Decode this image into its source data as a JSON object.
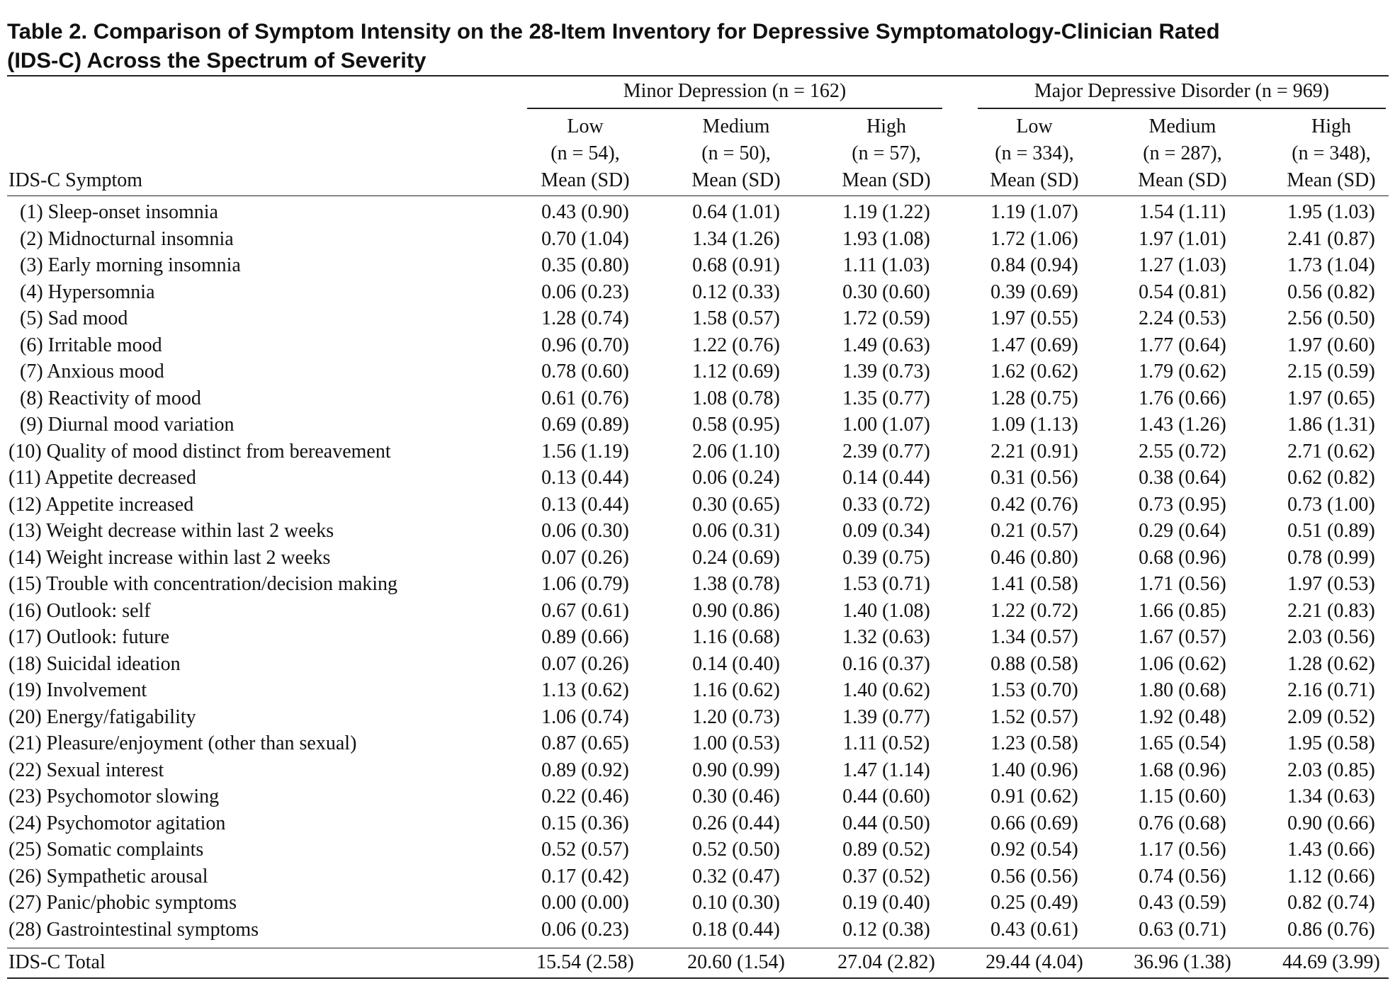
{
  "title_lines": [
    "Table 2. Comparison of Symptom Intensity on the 28-Item Inventory for Depressive Symptomatology-Clinician Rated",
    "(IDS-C) Across the Spectrum of Severity"
  ],
  "groups": [
    "Minor Depression (n = 162)",
    "Major Depressive Disorder (n = 969)"
  ],
  "row_header": "IDS-C Symptom",
  "columns": [
    [
      "Low",
      "(n = 54),",
      "Mean (SD)"
    ],
    [
      "Medium",
      "(n = 50),",
      "Mean (SD)"
    ],
    [
      "High",
      "(n = 57),",
      "Mean (SD)"
    ],
    [
      "Low",
      "(n = 334),",
      "Mean (SD)"
    ],
    [
      "Medium",
      "(n = 287),",
      "Mean (SD)"
    ],
    [
      "High",
      "(n = 348),",
      "Mean (SD)"
    ]
  ],
  "rows": [
    [
      "(1) Sleep-onset insomnia",
      "0.43 (0.90)",
      "0.64 (1.01)",
      "1.19 (1.22)",
      "1.19 (1.07)",
      "1.54 (1.11)",
      "1.95 (1.03)"
    ],
    [
      "(2) Midnocturnal insomnia",
      "0.70 (1.04)",
      "1.34 (1.26)",
      "1.93 (1.08)",
      "1.72 (1.06)",
      "1.97 (1.01)",
      "2.41 (0.87)"
    ],
    [
      "(3) Early morning insomnia",
      "0.35 (0.80)",
      "0.68 (0.91)",
      "1.11 (1.03)",
      "0.84 (0.94)",
      "1.27 (1.03)",
      "1.73 (1.04)"
    ],
    [
      "(4) Hypersomnia",
      "0.06 (0.23)",
      "0.12 (0.33)",
      "0.30 (0.60)",
      "0.39 (0.69)",
      "0.54 (0.81)",
      "0.56 (0.82)"
    ],
    [
      "(5) Sad mood",
      "1.28 (0.74)",
      "1.58 (0.57)",
      "1.72 (0.59)",
      "1.97 (0.55)",
      "2.24 (0.53)",
      "2.56 (0.50)"
    ],
    [
      "(6) Irritable mood",
      "0.96 (0.70)",
      "1.22 (0.76)",
      "1.49 (0.63)",
      "1.47 (0.69)",
      "1.77 (0.64)",
      "1.97 (0.60)"
    ],
    [
      "(7) Anxious mood",
      "0.78 (0.60)",
      "1.12 (0.69)",
      "1.39 (0.73)",
      "1.62 (0.62)",
      "1.79 (0.62)",
      "2.15 (0.59)"
    ],
    [
      "(8) Reactivity of mood",
      "0.61 (0.76)",
      "1.08 (0.78)",
      "1.35 (0.77)",
      "1.28 (0.75)",
      "1.76 (0.66)",
      "1.97 (0.65)"
    ],
    [
      "(9) Diurnal mood variation",
      "0.69 (0.89)",
      "0.58 (0.95)",
      "1.00 (1.07)",
      "1.09 (1.13)",
      "1.43 (1.26)",
      "1.86 (1.31)"
    ],
    [
      "(10) Quality of mood distinct from bereavement",
      "1.56 (1.19)",
      "2.06 (1.10)",
      "2.39 (0.77)",
      "2.21 (0.91)",
      "2.55 (0.72)",
      "2.71 (0.62)"
    ],
    [
      "(11) Appetite decreased",
      "0.13 (0.44)",
      "0.06 (0.24)",
      "0.14 (0.44)",
      "0.31 (0.56)",
      "0.38 (0.64)",
      "0.62 (0.82)"
    ],
    [
      "(12) Appetite increased",
      "0.13 (0.44)",
      "0.30 (0.65)",
      "0.33 (0.72)",
      "0.42 (0.76)",
      "0.73 (0.95)",
      "0.73 (1.00)"
    ],
    [
      "(13) Weight decrease within last 2 weeks",
      "0.06 (0.30)",
      "0.06 (0.31)",
      "0.09 (0.34)",
      "0.21 (0.57)",
      "0.29 (0.64)",
      "0.51 (0.89)"
    ],
    [
      "(14) Weight increase within last 2 weeks",
      "0.07 (0.26)",
      "0.24 (0.69)",
      "0.39 (0.75)",
      "0.46 (0.80)",
      "0.68 (0.96)",
      "0.78 (0.99)"
    ],
    [
      "(15) Trouble with concentration/decision making",
      "1.06 (0.79)",
      "1.38 (0.78)",
      "1.53 (0.71)",
      "1.41 (0.58)",
      "1.71 (0.56)",
      "1.97 (0.53)"
    ],
    [
      "(16) Outlook: self",
      "0.67 (0.61)",
      "0.90 (0.86)",
      "1.40 (1.08)",
      "1.22 (0.72)",
      "1.66 (0.85)",
      "2.21 (0.83)"
    ],
    [
      "(17) Outlook: future",
      "0.89 (0.66)",
      "1.16 (0.68)",
      "1.32 (0.63)",
      "1.34 (0.57)",
      "1.67 (0.57)",
      "2.03 (0.56)"
    ],
    [
      "(18) Suicidal ideation",
      "0.07 (0.26)",
      "0.14 (0.40)",
      "0.16 (0.37)",
      "0.88 (0.58)",
      "1.06 (0.62)",
      "1.28 (0.62)"
    ],
    [
      "(19) Involvement",
      "1.13 (0.62)",
      "1.16 (0.62)",
      "1.40 (0.62)",
      "1.53 (0.70)",
      "1.80 (0.68)",
      "2.16 (0.71)"
    ],
    [
      "(20) Energy/fatigability",
      "1.06 (0.74)",
      "1.20 (0.73)",
      "1.39 (0.77)",
      "1.52 (0.57)",
      "1.92 (0.48)",
      "2.09 (0.52)"
    ],
    [
      "(21) Pleasure/enjoyment (other than sexual)",
      "0.87 (0.65)",
      "1.00 (0.53)",
      "1.11 (0.52)",
      "1.23 (0.58)",
      "1.65 (0.54)",
      "1.95 (0.58)"
    ],
    [
      "(22) Sexual interest",
      "0.89 (0.92)",
      "0.90 (0.99)",
      "1.47 (1.14)",
      "1.40 (0.96)",
      "1.68 (0.96)",
      "2.03 (0.85)"
    ],
    [
      "(23) Psychomotor slowing",
      "0.22 (0.46)",
      "0.30 (0.46)",
      "0.44 (0.60)",
      "0.91 (0.62)",
      "1.15 (0.60)",
      "1.34 (0.63)"
    ],
    [
      "(24) Psychomotor agitation",
      "0.15 (0.36)",
      "0.26 (0.44)",
      "0.44 (0.50)",
      "0.66 (0.69)",
      "0.76 (0.68)",
      "0.90 (0.66)"
    ],
    [
      "(25) Somatic complaints",
      "0.52 (0.57)",
      "0.52 (0.50)",
      "0.89 (0.52)",
      "0.92 (0.54)",
      "1.17 (0.56)",
      "1.43 (0.66)"
    ],
    [
      "(26) Sympathetic arousal",
      "0.17 (0.42)",
      "0.32 (0.47)",
      "0.37 (0.52)",
      "0.56 (0.56)",
      "0.74 (0.56)",
      "1.12 (0.66)"
    ],
    [
      "(27) Panic/phobic symptoms",
      "0.00 (0.00)",
      "0.10 (0.30)",
      "0.19 (0.40)",
      "0.25 (0.49)",
      "0.43 (0.59)",
      "0.82 (0.74)"
    ],
    [
      "(28) Gastrointestinal symptoms",
      "0.06 (0.23)",
      "0.18 (0.44)",
      "0.12 (0.38)",
      "0.43 (0.61)",
      "0.63 (0.71)",
      "0.86 (0.76)"
    ],
    [
      "IDS-C Total",
      "15.54 (2.58)",
      "20.60 (1.54)",
      "27.04 (2.82)",
      "29.44 (4.04)",
      "36.96 (1.38)",
      "44.69 (3.99)"
    ]
  ]
}
